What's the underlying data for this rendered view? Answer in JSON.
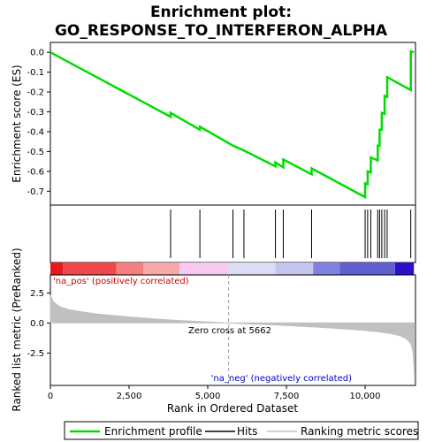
{
  "chart_data": {
    "type": "line",
    "title_line1": "Enrichment plot:",
    "title_line2": "GO_RESPONSE_TO_INTERFERON_ALPHA",
    "top_ylabel": "Enrichment score (ES)",
    "bottom_ylabel": "Ranked list metric (PreRanked)",
    "xlabel": "Rank in Ordered Dataset",
    "xlim": [
      0,
      11600
    ],
    "es_ylim": [
      -0.77,
      0.05
    ],
    "metric_ylim": [
      -5.2,
      4.0
    ],
    "x_ticks": [
      0,
      2500,
      5000,
      7500,
      10000
    ],
    "x_tick_labels": [
      "0",
      "2,500",
      "5,000",
      "7,500",
      "10,000"
    ],
    "es_ticks": [
      0.0,
      -0.1,
      -0.2,
      -0.3,
      -0.4,
      -0.5,
      -0.6,
      -0.7
    ],
    "es_tick_labels": [
      "0.0",
      "-0.1",
      "-0.2",
      "-0.3",
      "-0.4",
      "-0.5",
      "-0.6",
      "-0.7"
    ],
    "metric_ticks": [
      2.5,
      0.0,
      -2.5
    ],
    "metric_tick_labels": [
      "2.5",
      "0.0",
      "-2.5"
    ],
    "hits": [
      3820,
      4750,
      5800,
      6150,
      7150,
      7400,
      8300,
      10000,
      10080,
      10180,
      10400,
      10460,
      10530,
      10620,
      10700,
      11450
    ],
    "es_points": [
      [
        0,
        0.0
      ],
      [
        3820,
        -0.325
      ],
      [
        3821,
        -0.305
      ],
      [
        4750,
        -0.39
      ],
      [
        4751,
        -0.375
      ],
      [
        5800,
        -0.47
      ],
      [
        6150,
        -0.495
      ],
      [
        7150,
        -0.575
      ],
      [
        7151,
        -0.555
      ],
      [
        7400,
        -0.58
      ],
      [
        7401,
        -0.54
      ],
      [
        8300,
        -0.615
      ],
      [
        8301,
        -0.585
      ],
      [
        10000,
        -0.73
      ],
      [
        10001,
        -0.66
      ],
      [
        10080,
        -0.665
      ],
      [
        10081,
        -0.6
      ],
      [
        10180,
        -0.605
      ],
      [
        10181,
        -0.53
      ],
      [
        10400,
        -0.545
      ],
      [
        10401,
        -0.47
      ],
      [
        10460,
        -0.47
      ],
      [
        10461,
        -0.39
      ],
      [
        10530,
        -0.39
      ],
      [
        10531,
        -0.305
      ],
      [
        10620,
        -0.31
      ],
      [
        10621,
        -0.22
      ],
      [
        10700,
        -0.225
      ],
      [
        10701,
        -0.125
      ],
      [
        11450,
        -0.19
      ],
      [
        11451,
        0.005
      ],
      [
        11550,
        0.0
      ]
    ],
    "zero_cross": 5662,
    "zero_cross_label": "Zero cross at 5662",
    "pos_label": "'na_pos' (positively correlated)",
    "neg_label": "'na_neg' (negatively correlated)",
    "metric_profile": [
      [
        0,
        2.3
      ],
      [
        100,
        1.75
      ],
      [
        300,
        1.35
      ],
      [
        600,
        1.1
      ],
      [
        1000,
        0.92
      ],
      [
        1500,
        0.75
      ],
      [
        2000,
        0.62
      ],
      [
        2500,
        0.5
      ],
      [
        3000,
        0.4
      ],
      [
        3500,
        0.3
      ],
      [
        4000,
        0.22
      ],
      [
        4500,
        0.15
      ],
      [
        5000,
        0.08
      ],
      [
        5400,
        0.03
      ],
      [
        5662,
        0.0
      ],
      [
        6000,
        -0.04
      ],
      [
        6500,
        -0.1
      ],
      [
        7000,
        -0.15
      ],
      [
        7500,
        -0.21
      ],
      [
        8000,
        -0.28
      ],
      [
        8500,
        -0.35
      ],
      [
        9000,
        -0.43
      ],
      [
        9500,
        -0.52
      ],
      [
        10000,
        -0.62
      ],
      [
        10400,
        -0.73
      ],
      [
        10800,
        -0.88
      ],
      [
        11100,
        -1.05
      ],
      [
        11300,
        -1.3
      ],
      [
        11450,
        -1.7
      ],
      [
        11520,
        -2.4
      ],
      [
        11560,
        -4.0
      ],
      [
        11580,
        -5.0
      ]
    ],
    "colorbar_colors": [
      "#e41a1c",
      "#ee4848",
      "#f28080",
      "#f6a8a8",
      "#f8c8f0",
      "#dcdcf6",
      "#c4c4f0",
      "#8080e0",
      "#6060d0",
      "#2a10c8"
    ],
    "colorbar_breaks": [
      0,
      400,
      2100,
      2950,
      4100,
      5650,
      7150,
      8350,
      9200,
      10950,
      11550
    ],
    "legend": [
      "Enrichment profile",
      "Hits",
      "Ranking metric scores"
    ],
    "colors": {
      "es_line": "#00dd00",
      "hit": "#000000",
      "metric_fill": "#c0c0c0",
      "zero_line": "#a0a0a0",
      "pos_text": "#cc0000",
      "neg_text": "#0000cc"
    }
  }
}
